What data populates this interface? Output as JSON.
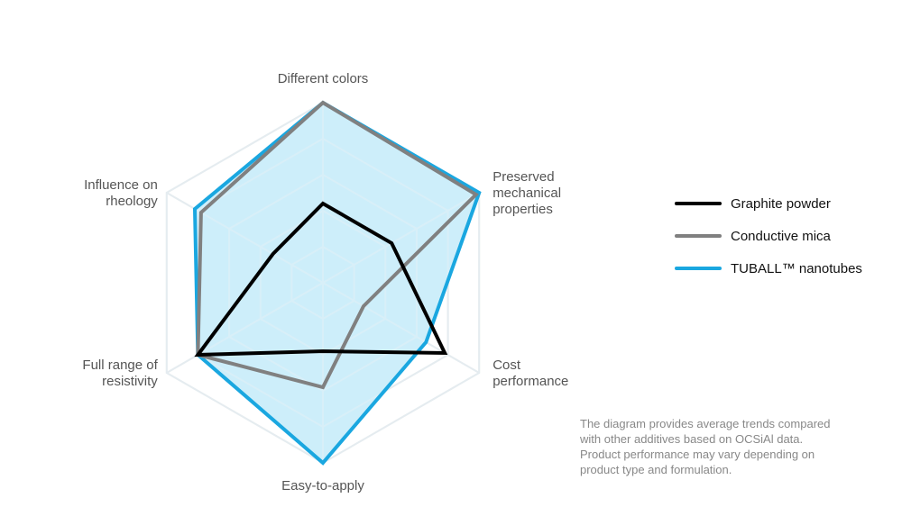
{
  "chart_data": {
    "type": "radar",
    "axes": [
      {
        "label_lines": [
          "Different colors"
        ]
      },
      {
        "label_lines": [
          "Preserved",
          "mechanical",
          "properties"
        ]
      },
      {
        "label_lines": [
          "Cost",
          "performance"
        ]
      },
      {
        "label_lines": [
          "Easy-to-apply"
        ]
      },
      {
        "label_lines": [
          "Full range of",
          "resistivity"
        ]
      },
      {
        "label_lines": [
          "Influence on",
          "rheology"
        ]
      }
    ],
    "range": [
      0,
      5
    ],
    "grid_levels": 5,
    "series": [
      {
        "name": "Graphite powder",
        "color": "#000000",
        "fill": false,
        "values": [
          2.2,
          2.2,
          3.9,
          1.9,
          4.0,
          1.6
        ]
      },
      {
        "name": "Conductive mica",
        "color": "#808080",
        "fill": false,
        "values": [
          5.0,
          4.9,
          1.3,
          2.9,
          4.0,
          3.9
        ]
      },
      {
        "name": "TUBALL™ nanotubes",
        "color": "#1aa7e0",
        "fill": true,
        "fill_color": "#c4ebf9",
        "values": [
          5.0,
          5.0,
          3.3,
          5.0,
          4.0,
          4.1
        ]
      }
    ]
  },
  "note_lines": [
    "The diagram provides average trends compared",
    "with other additives based on OCSiAl data.",
    "Product performance may vary depending on",
    "product type and formulation."
  ]
}
